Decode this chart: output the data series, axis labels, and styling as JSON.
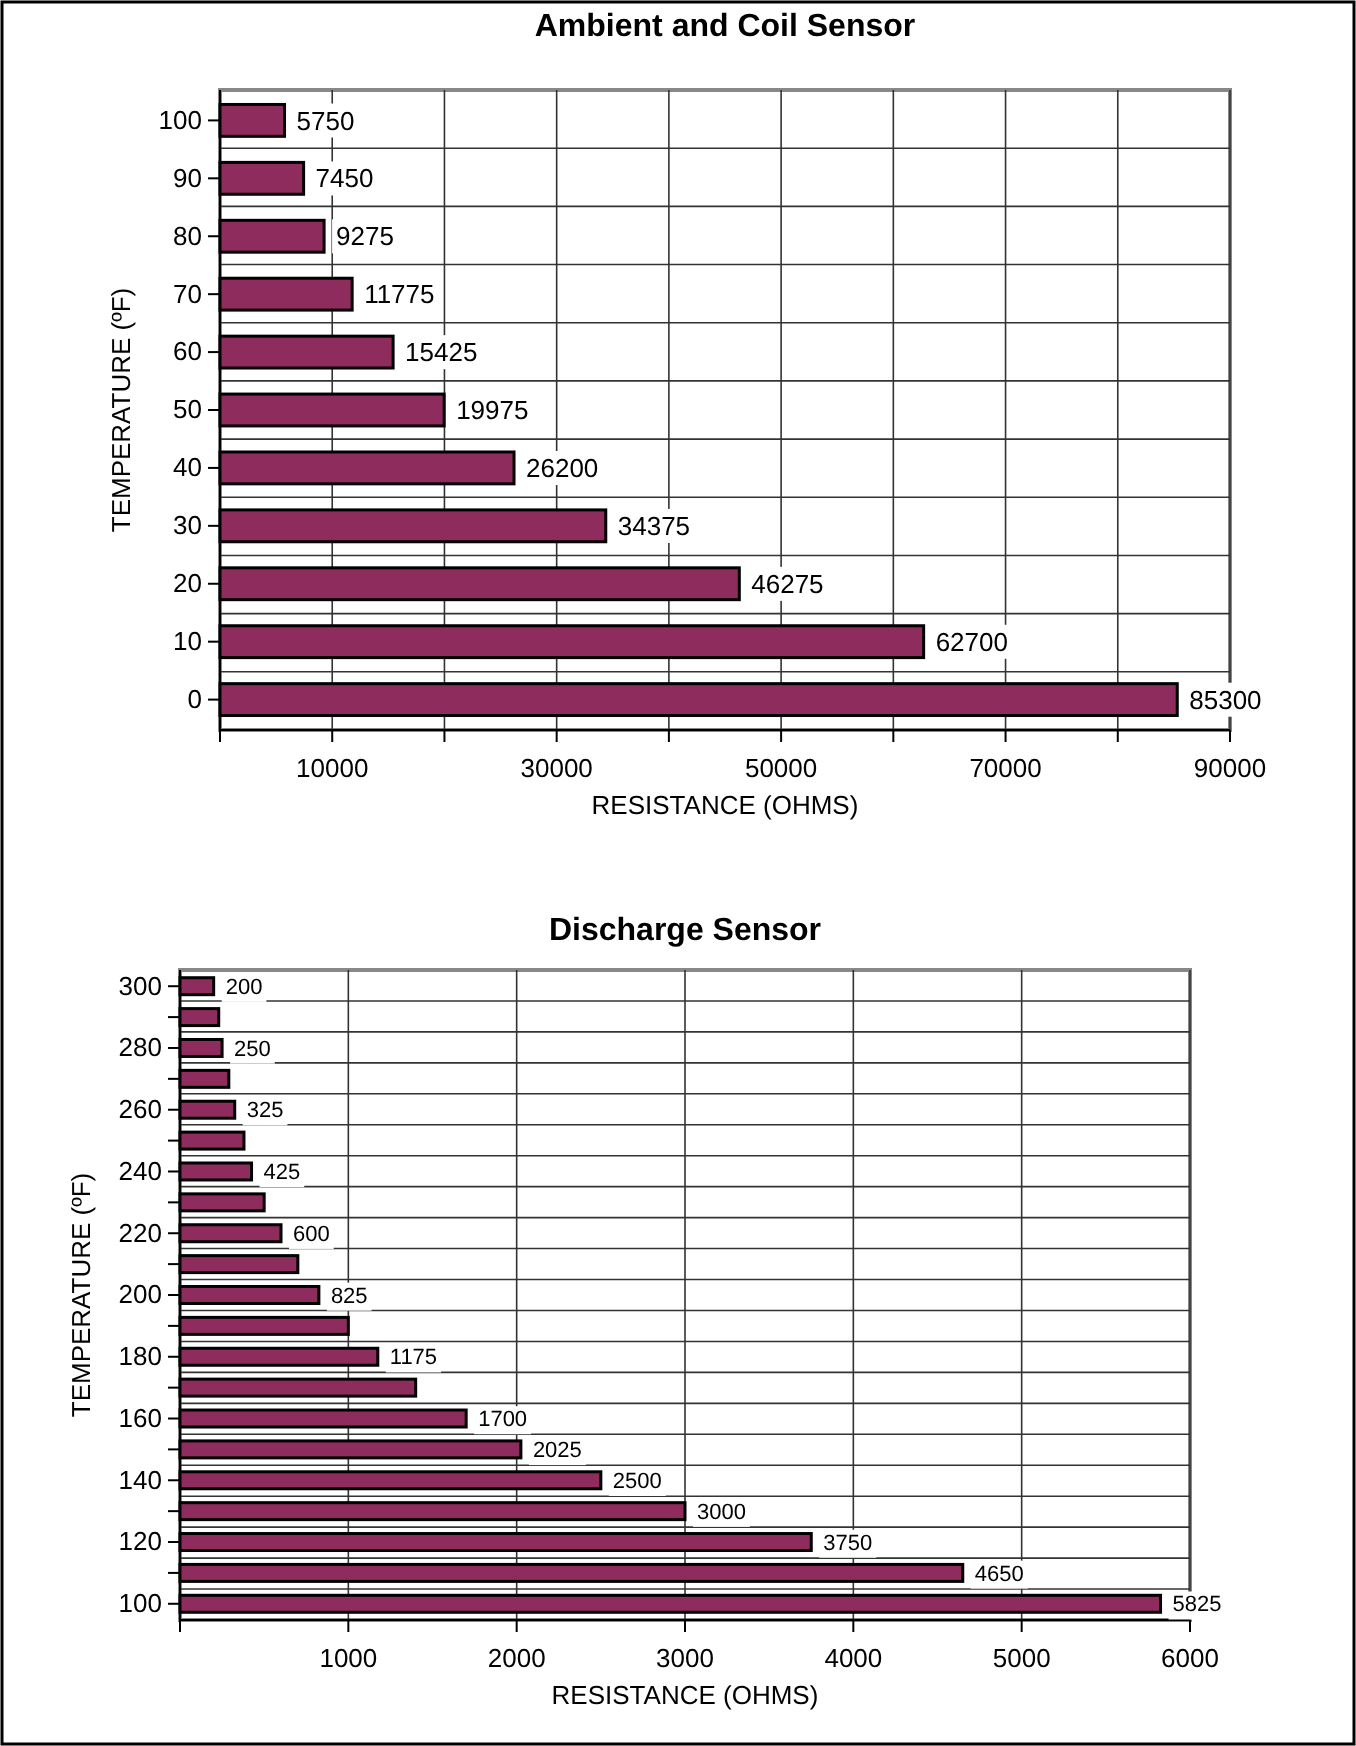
{
  "chart_data": [
    {
      "type": "bar",
      "orientation": "horizontal",
      "title": "Ambient and Coil Sensor",
      "xlabel": "RESISTANCE (OHMS)",
      "ylabel": "TEMPERATURE (ºF)",
      "categories": [
        "100",
        "90",
        "80",
        "70",
        "60",
        "50",
        "40",
        "30",
        "20",
        "10",
        "0"
      ],
      "values": [
        5750,
        7450,
        9275,
        11775,
        15425,
        19975,
        26200,
        34375,
        46275,
        62700,
        85300
      ],
      "color": "#8e2c5e",
      "data_labels": true,
      "grid": true,
      "xlim": [
        0,
        90000
      ],
      "xticks": [
        {
          "value": 0,
          "label": null
        },
        10000,
        {
          "value": 20000,
          "label": null
        },
        30000,
        {
          "value": 40000,
          "label": null
        },
        50000,
        {
          "value": 60000,
          "label": null
        },
        70000,
        {
          "value": 80000,
          "label": null
        },
        90000
      ]
    },
    {
      "type": "bar",
      "orientation": "horizontal",
      "title": "Discharge Sensor",
      "xlabel": "RESISTANCE (OHMS)",
      "ylabel": "TEMPERATURE (ºF)",
      "categories": [
        "300",
        null,
        "280",
        null,
        "260",
        null,
        "240",
        null,
        "220",
        null,
        "200",
        null,
        "180",
        null,
        "160",
        null,
        "140",
        null,
        "120",
        null,
        "100"
      ],
      "values": [
        200,
        230,
        250,
        290,
        325,
        380,
        425,
        500,
        600,
        700,
        825,
        1000,
        1175,
        1400,
        1700,
        2025,
        2500,
        3000,
        3750,
        4650,
        5825
      ],
      "value_labels": [
        "200",
        null,
        "250",
        null,
        "325",
        null,
        "425",
        null,
        "600",
        null,
        "825",
        null,
        "1175",
        null,
        "1700",
        "2025",
        "2500",
        "3000",
        "3750",
        "4650",
        "5825"
      ],
      "color": "#8e2c5e",
      "grid": true,
      "xlim": [
        0,
        6000
      ],
      "xticks": [
        {
          "value": 0,
          "label": null
        },
        1000,
        2000,
        3000,
        4000,
        5000,
        6000
      ]
    }
  ]
}
